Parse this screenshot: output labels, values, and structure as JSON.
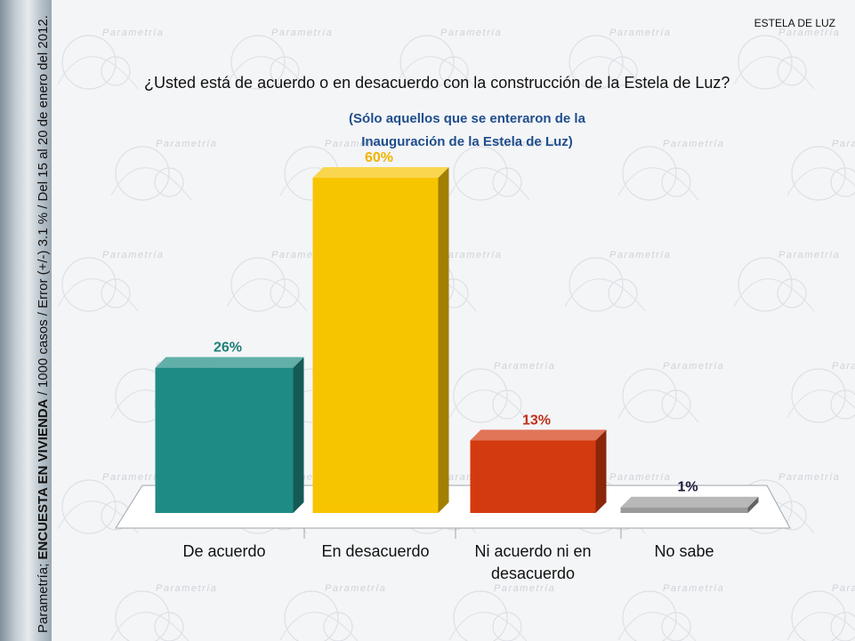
{
  "header": {
    "right_label": "ESTELA DE LUZ"
  },
  "side_text": {
    "prefix": "Parametría; ",
    "bold": "ENCUESTA EN VIVIENDA",
    "suffix": " / 1000 casos / Error (+/-) 3.1 % / Del 15 al 20 de enero del 2012."
  },
  "watermark": {
    "word": "Parametría"
  },
  "colors": {
    "teal": "#1e8c84",
    "yellow": "#f7c400",
    "red": "#d43a10",
    "gray": "#9a9a9a",
    "subtitle_blue": "#1f4e8c"
  },
  "chart_data": {
    "type": "bar",
    "title": "¿Usted está de acuerdo o en desacuerdo con la construcción de la Estela de Luz?",
    "subtitle": [
      "(Sólo aquellos que se enteraron de la",
      "Inauguración de la Estela de Luz)"
    ],
    "categories": [
      "De acuerdo",
      "En desacuerdo",
      "Ni acuerdo ni en desacuerdo",
      "No sabe"
    ],
    "category_lines": [
      [
        "De acuerdo"
      ],
      [
        "En desacuerdo"
      ],
      [
        "Ni acuerdo ni en",
        "desacuerdo"
      ],
      [
        "No sabe"
      ]
    ],
    "values": [
      26,
      60,
      13,
      1
    ],
    "data_labels": [
      "26%",
      "60%",
      "13%",
      "1%"
    ],
    "bar_colors": [
      "#1e8c84",
      "#f7c400",
      "#d43a10",
      "#9a9a9a"
    ],
    "label_colors": [
      "#1e7e78",
      "#f0b400",
      "#c0301b",
      "#1a1a3a"
    ],
    "ylim": [
      0,
      60
    ],
    "grid": false,
    "legend": "none"
  }
}
